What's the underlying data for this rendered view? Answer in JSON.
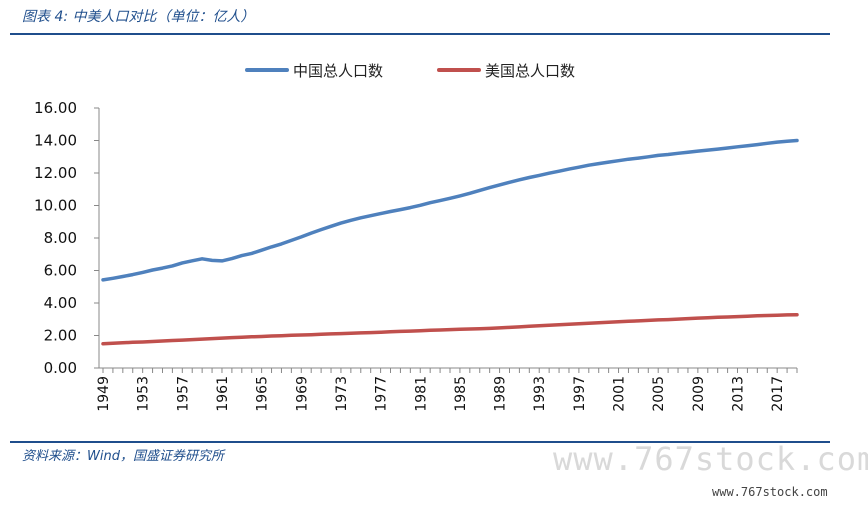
{
  "caption": "图表 4:  中美人口对比（单位：亿人）",
  "source": "资料来源：Wind，国盛证券研究所",
  "watermark": {
    "large": "www.767stock.com",
    "small": "www.767stock.com"
  },
  "chart_data": {
    "type": "line",
    "title": "",
    "xlabel": "",
    "ylabel": "",
    "ylim": [
      0,
      16
    ],
    "yticks": [
      "0.00",
      "2.00",
      "4.00",
      "6.00",
      "8.00",
      "10.00",
      "12.00",
      "14.00",
      "16.00"
    ],
    "grid": false,
    "legend": "top-center",
    "x": [
      1949,
      1950,
      1951,
      1952,
      1953,
      1954,
      1955,
      1956,
      1957,
      1958,
      1959,
      1960,
      1961,
      1962,
      1963,
      1964,
      1965,
      1966,
      1967,
      1968,
      1969,
      1970,
      1971,
      1972,
      1973,
      1974,
      1975,
      1976,
      1977,
      1978,
      1979,
      1980,
      1981,
      1982,
      1983,
      1984,
      1985,
      1986,
      1987,
      1988,
      1989,
      1990,
      1991,
      1992,
      1993,
      1994,
      1995,
      1996,
      1997,
      1998,
      1999,
      2000,
      2001,
      2002,
      2003,
      2004,
      2005,
      2006,
      2007,
      2008,
      2009,
      2010,
      2011,
      2012,
      2013,
      2014,
      2015,
      2016,
      2017,
      2018,
      2019
    ],
    "xticks": [
      1949,
      1953,
      1957,
      1961,
      1965,
      1969,
      1973,
      1977,
      1981,
      1985,
      1989,
      1993,
      1997,
      2001,
      2005,
      2009,
      2013,
      2017
    ],
    "series": [
      {
        "name": "中国总人口数",
        "color": "#4f81bd",
        "values": [
          5.42,
          5.52,
          5.63,
          5.75,
          5.88,
          6.03,
          6.15,
          6.28,
          6.47,
          6.6,
          6.72,
          6.62,
          6.59,
          6.73,
          6.92,
          7.05,
          7.25,
          7.45,
          7.64,
          7.85,
          8.07,
          8.3,
          8.52,
          8.72,
          8.92,
          9.09,
          9.24,
          9.37,
          9.5,
          9.63,
          9.75,
          9.87,
          10.01,
          10.17,
          10.3,
          10.44,
          10.59,
          10.75,
          10.93,
          11.1,
          11.27,
          11.43,
          11.58,
          11.72,
          11.85,
          11.99,
          12.11,
          12.24,
          12.36,
          12.48,
          12.58,
          12.67,
          12.76,
          12.85,
          12.92,
          13.0,
          13.08,
          13.14,
          13.21,
          13.28,
          13.35,
          13.41,
          13.47,
          13.54,
          13.61,
          13.68,
          13.75,
          13.83,
          13.9,
          13.95,
          14.0
        ]
      },
      {
        "name": "美国总人口数",
        "color": "#c0504d",
        "values": [
          1.49,
          1.52,
          1.55,
          1.58,
          1.6,
          1.63,
          1.66,
          1.69,
          1.72,
          1.75,
          1.78,
          1.81,
          1.84,
          1.87,
          1.89,
          1.92,
          1.94,
          1.97,
          1.99,
          2.01,
          2.03,
          2.05,
          2.08,
          2.1,
          2.12,
          2.14,
          2.16,
          2.18,
          2.2,
          2.23,
          2.25,
          2.27,
          2.29,
          2.32,
          2.34,
          2.36,
          2.38,
          2.4,
          2.42,
          2.44,
          2.47,
          2.5,
          2.53,
          2.57,
          2.6,
          2.63,
          2.66,
          2.69,
          2.72,
          2.75,
          2.78,
          2.82,
          2.85,
          2.88,
          2.9,
          2.93,
          2.96,
          2.98,
          3.01,
          3.04,
          3.07,
          3.09,
          3.12,
          3.14,
          3.16,
          3.19,
          3.21,
          3.23,
          3.25,
          3.27,
          3.28
        ]
      }
    ]
  }
}
